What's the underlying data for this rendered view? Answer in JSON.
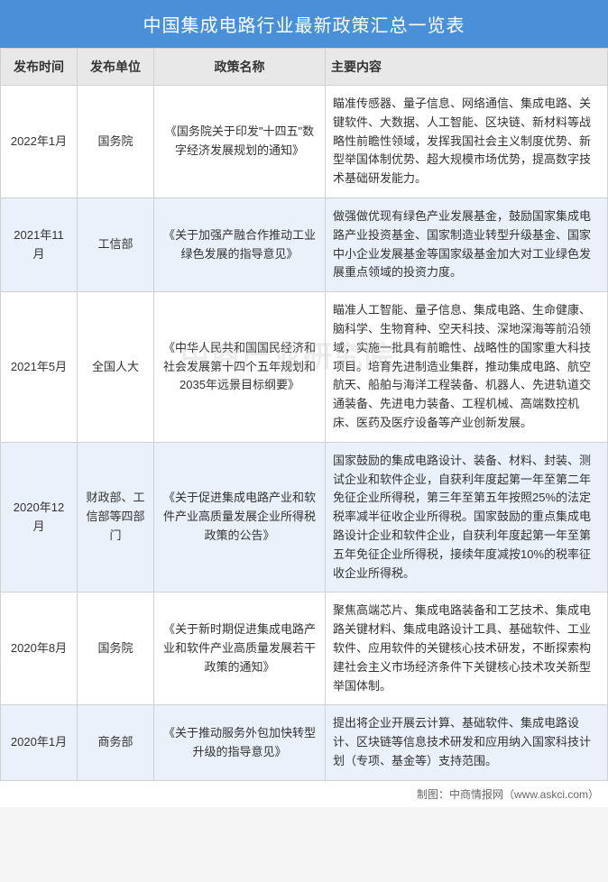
{
  "title": "中国集成电路行业最新政策汇总一览表",
  "columns": [
    "发布时间",
    "发布单位",
    "政策名称",
    "主要内容"
  ],
  "rows": [
    {
      "date": "2022年1月",
      "dept": "国务院",
      "policy": "《国务院关于印发\"十四五\"数字经济发展规划的通知》",
      "content": "瞄准传感器、量子信息、网络通信、集成电路、关键软件、大数据、人工智能、区块链、新材料等战略性前瞻性领域，发挥我国社会主义制度优势、新型举国体制优势、超大规模市场优势，提高数字技术基础研发能力。"
    },
    {
      "date": "2021年11月",
      "dept": "工信部",
      "policy": "《关于加强产融合作推动工业绿色发展的指导意见》",
      "content": "做强做优现有绿色产业发展基金，鼓励国家集成电路产业投资基金、国家制造业转型升级基金、国家中小企业发展基金等国家级基金加大对工业绿色发展重点领域的投资力度。"
    },
    {
      "date": "2021年5月",
      "dept": "全国人大",
      "policy": "《中华人民共和国国民经济和社会发展第十四个五年规划和2035年远景目标纲要》",
      "content": "瞄准人工智能、量子信息、集成电路、生命健康、脑科学、生物育种、空天科技、深地深海等前沿领域，实施一批具有前瞻性、战略性的国家重大科技项目。培育先进制造业集群，推动集成电路、航空航天、船舶与海洋工程装备、机器人、先进轨道交通装备、先进电力装备、工程机械、高端数控机床、医药及医疗设备等产业创新发展。"
    },
    {
      "date": "2020年12月",
      "dept": "财政部、工信部等四部门",
      "policy": "《关于促进集成电路产业和软件产业高质量发展企业所得税政策的公告》",
      "content": "国家鼓励的集成电路设计、装备、材料、封装、测试企业和软件企业，自获利年度起第一年至第二年免征企业所得税，第三年至第五年按照25%的法定税率减半征收企业所得税。国家鼓励的重点集成电路设计企业和软件企业，自获利年度起第一年至第五年免征企业所得税，接续年度减按10%的税率征收企业所得税。"
    },
    {
      "date": "2020年8月",
      "dept": "国务院",
      "policy": "《关于新时期促进集成电路产业和软件产业高质量发展若干政策的通知》",
      "content": "聚焦高端芯片、集成电路装备和工艺技术、集成电路关键材料、集成电路设计工具、基础软件、工业软件、应用软件的关键核心技术研发，不断探索构建社会主义市场经济条件下关键核心技术攻关新型举国体制。"
    },
    {
      "date": "2020年1月",
      "dept": "商务部",
      "policy": "《关于推动服务外包加快转型升级的指导意见》",
      "content": "提出将企业开展云计算、基础软件、集成电路设计、区块链等信息技术研发和应用纳入国家科技计划（专项、基金等）支持范围。"
    }
  ],
  "footer": "制图：中商情报网（www.askci.com）",
  "watermark": "中商产业研究院",
  "colors": {
    "header_bg": "#4a90d9",
    "header_text": "#ffffff",
    "th_bg": "#e8e8e8",
    "row_odd": "#ffffff",
    "row_even": "#eaf1fa",
    "border": "#d0d0d0"
  }
}
